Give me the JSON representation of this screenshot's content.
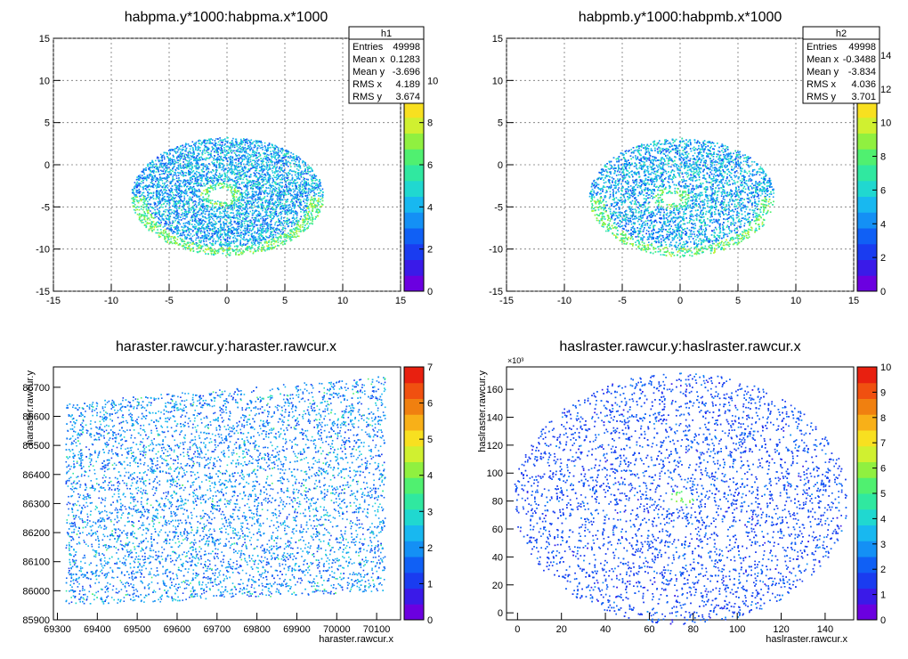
{
  "chart_data": [
    {
      "type": "heatmap",
      "title": "habpma.y*1000:habpma.x*1000",
      "xlabel": "",
      "ylabel": "",
      "xlim": [
        -15,
        15
      ],
      "ylim": [
        -15,
        15
      ],
      "x_ticks": [
        "-15",
        "-10",
        "-5",
        "0",
        "5",
        "10",
        "15"
      ],
      "y_ticks": [
        "-15",
        "-10",
        "-5",
        "0",
        "5",
        "10",
        "15"
      ],
      "z_ticks": [
        "0",
        "2",
        "4",
        "6",
        "8",
        "10"
      ],
      "zmax": 12,
      "grid": true,
      "distribution": {
        "shape": "ellipse-ring",
        "cx": 0,
        "cy": -3.7,
        "rx": 8.3,
        "ry": 7.0,
        "hole_cx": -0.6,
        "hole_cy": -3.5,
        "hole_r": 1.0
      },
      "stats": {
        "title": "h1",
        "rows": [
          {
            "label": "Entries",
            "value": "49998"
          },
          {
            "label": "Mean x",
            "value": "0.1283"
          },
          {
            "label": "Mean y",
            "value": "-3.696"
          },
          {
            "label": "RMS x",
            "value": "4.189"
          },
          {
            "label": "RMS y",
            "value": "3.674"
          }
        ]
      }
    },
    {
      "type": "heatmap",
      "title": "habpmb.y*1000:habpmb.x*1000",
      "xlabel": "",
      "ylabel": "",
      "xlim": [
        -15,
        15
      ],
      "ylim": [
        -15,
        15
      ],
      "x_ticks": [
        "-15",
        "-10",
        "-5",
        "0",
        "5",
        "10",
        "15"
      ],
      "y_ticks": [
        "-15",
        "-10",
        "-5",
        "0",
        "5",
        "10",
        "15"
      ],
      "z_ticks": [
        "0",
        "2",
        "4",
        "6",
        "8",
        "10",
        "12",
        "14"
      ],
      "zmax": 15,
      "grid": true,
      "distribution": {
        "shape": "ellipse-ring",
        "cx": 0.1,
        "cy": -3.8,
        "rx": 8.0,
        "ry": 7.0,
        "hole_cx": -0.8,
        "hole_cy": -3.9,
        "hole_r": 0.8
      },
      "stats": {
        "title": "h2",
        "rows": [
          {
            "label": "Entries",
            "value": "49998"
          },
          {
            "label": "Mean x",
            "value": "-0.3488"
          },
          {
            "label": "Mean y",
            "value": "-3.834"
          },
          {
            "label": "RMS x",
            "value": "4.036"
          },
          {
            "label": "RMS y",
            "value": "3.701"
          }
        ]
      }
    },
    {
      "type": "heatmap",
      "title": "haraster.rawcur.y:haraster.rawcur.x",
      "xlabel": "haraster.rawcur.x",
      "ylabel": "haraster.rawcur.y",
      "xlim": [
        69290,
        70160
      ],
      "ylim": [
        85900,
        86770
      ],
      "x_ticks": [
        "69300",
        "69400",
        "69500",
        "69600",
        "69700",
        "69800",
        "69900",
        "70000",
        "70100"
      ],
      "y_ticks": [
        "85900",
        "86000",
        "86100",
        "86200",
        "86300",
        "86400",
        "86500",
        "86600",
        "86700"
      ],
      "z_ticks": [
        "0",
        "1",
        "2",
        "3",
        "4",
        "5",
        "6",
        "7"
      ],
      "zmax": 7,
      "grid": false,
      "distribution": {
        "shape": "parallelogram",
        "x0": 69320,
        "x1": 70120,
        "y_bottom_left": 85950,
        "y_top_left": 86650,
        "y_bottom_right": 86000,
        "y_top_right": 86740
      }
    },
    {
      "type": "heatmap",
      "title": "haslraster.rawcur.y:haslraster.rawcur.x",
      "xlabel": "haslraster.rawcur.x",
      "ylabel": "haslraster.rawcur.y",
      "exponent_label": "×10³",
      "xlim": [
        -5,
        153
      ],
      "ylim": [
        -5,
        176
      ],
      "x_ticks": [
        "0",
        "20",
        "40",
        "60",
        "80",
        "100",
        "120",
        "140"
      ],
      "y_ticks": [
        "0",
        "20",
        "40",
        "60",
        "80",
        "100",
        "120",
        "140",
        "160"
      ],
      "z_ticks": [
        "0",
        "1",
        "2",
        "3",
        "4",
        "5",
        "6",
        "7",
        "8",
        "9",
        "10"
      ],
      "zmax": 10,
      "grid": false,
      "distribution": {
        "shape": "ellipse",
        "cx": 74,
        "cy": 82,
        "rx": 76,
        "ry": 90,
        "hot_cx": 74,
        "hot_cy": 82
      }
    }
  ],
  "palette": [
    "#6b00e0",
    "#3a1ae8",
    "#1a3cf0",
    "#1060f5",
    "#1490f5",
    "#18b8f0",
    "#20d8d0",
    "#30e8a0",
    "#50f070",
    "#90f040",
    "#d0f030",
    "#f8e020",
    "#f8b018",
    "#f08010",
    "#f05010",
    "#e82010"
  ]
}
